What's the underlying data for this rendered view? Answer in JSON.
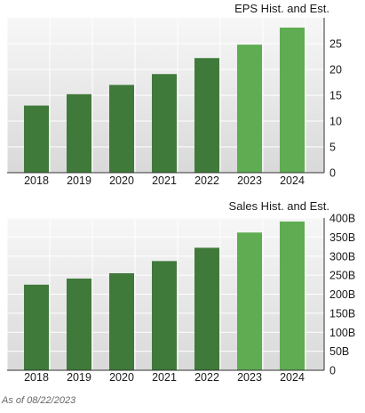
{
  "colors": {
    "historical": "#3f7a3a",
    "estimate": "#5fac52",
    "plot_background_top": "#f7f7f7",
    "plot_background_bottom": "#d9d9d9",
    "grid": "#ffffff",
    "axis": "#333333"
  },
  "footnote": "As of 08/22/2023",
  "chart_data": [
    {
      "type": "bar",
      "title": "EPS Hist. and Est.",
      "categories": [
        "2018",
        "2019",
        "2020",
        "2021",
        "2022",
        "2023",
        "2024"
      ],
      "values": [
        13,
        15.2,
        17,
        19.1,
        22.2,
        24.8,
        28.1
      ],
      "estimate_flags": [
        false,
        false,
        false,
        false,
        false,
        true,
        true
      ],
      "ylim": [
        0,
        30
      ],
      "yticks": [
        0,
        5,
        10,
        15,
        20,
        25
      ],
      "ytick_labels": [
        "0",
        "5",
        "10",
        "15",
        "20",
        "25"
      ],
      "y_axis_side": "right",
      "grid": true
    },
    {
      "type": "bar",
      "title": "Sales Hist. and Est.",
      "categories": [
        "2018",
        "2019",
        "2020",
        "2021",
        "2022",
        "2023",
        "2024"
      ],
      "values": [
        225,
        241,
        255,
        287,
        322,
        362,
        391
      ],
      "estimate_flags": [
        false,
        false,
        false,
        false,
        false,
        true,
        true
      ],
      "ylim": [
        0,
        400
      ],
      "yticks": [
        0,
        50,
        100,
        150,
        200,
        250,
        300,
        350,
        400
      ],
      "ytick_labels": [
        "0",
        "50B",
        "100B",
        "150B",
        "200B",
        "250B",
        "300B",
        "350B",
        "400B"
      ],
      "y_axis_side": "right",
      "grid": true
    }
  ]
}
